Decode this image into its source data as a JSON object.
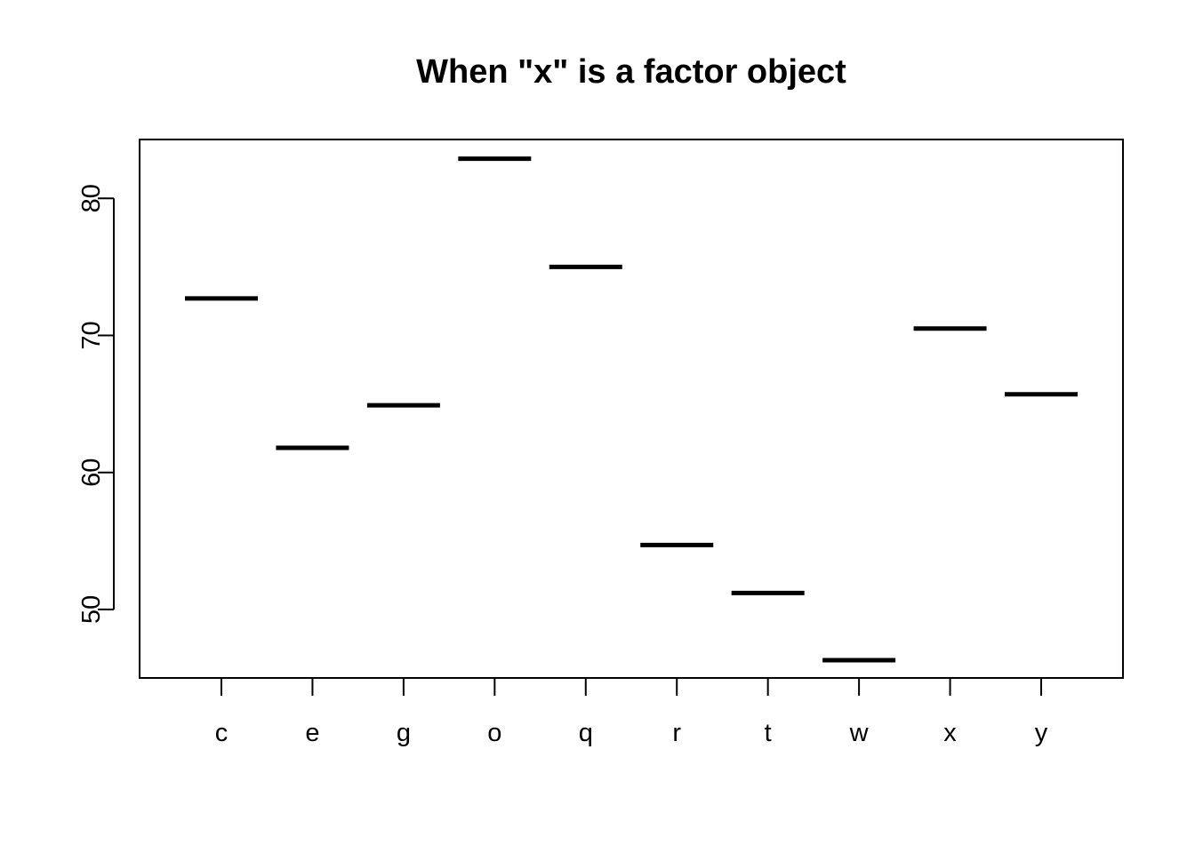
{
  "chart_data": {
    "type": "bar",
    "title": "When \"x\" is a factor object",
    "xlabel": "",
    "ylabel": "",
    "categories": [
      "c",
      "e",
      "g",
      "o",
      "q",
      "r",
      "t",
      "w",
      "x",
      "y"
    ],
    "values": [
      72.7,
      61.8,
      64.9,
      82.9,
      75.0,
      54.7,
      51.2,
      46.3,
      70.5,
      65.7
    ],
    "ylim": [
      45,
      84.3
    ],
    "yticks": [
      50,
      60,
      70,
      80
    ],
    "grid": false,
    "legend": "none",
    "colors": {
      "line": "#000000",
      "background": "#ffffff"
    }
  }
}
